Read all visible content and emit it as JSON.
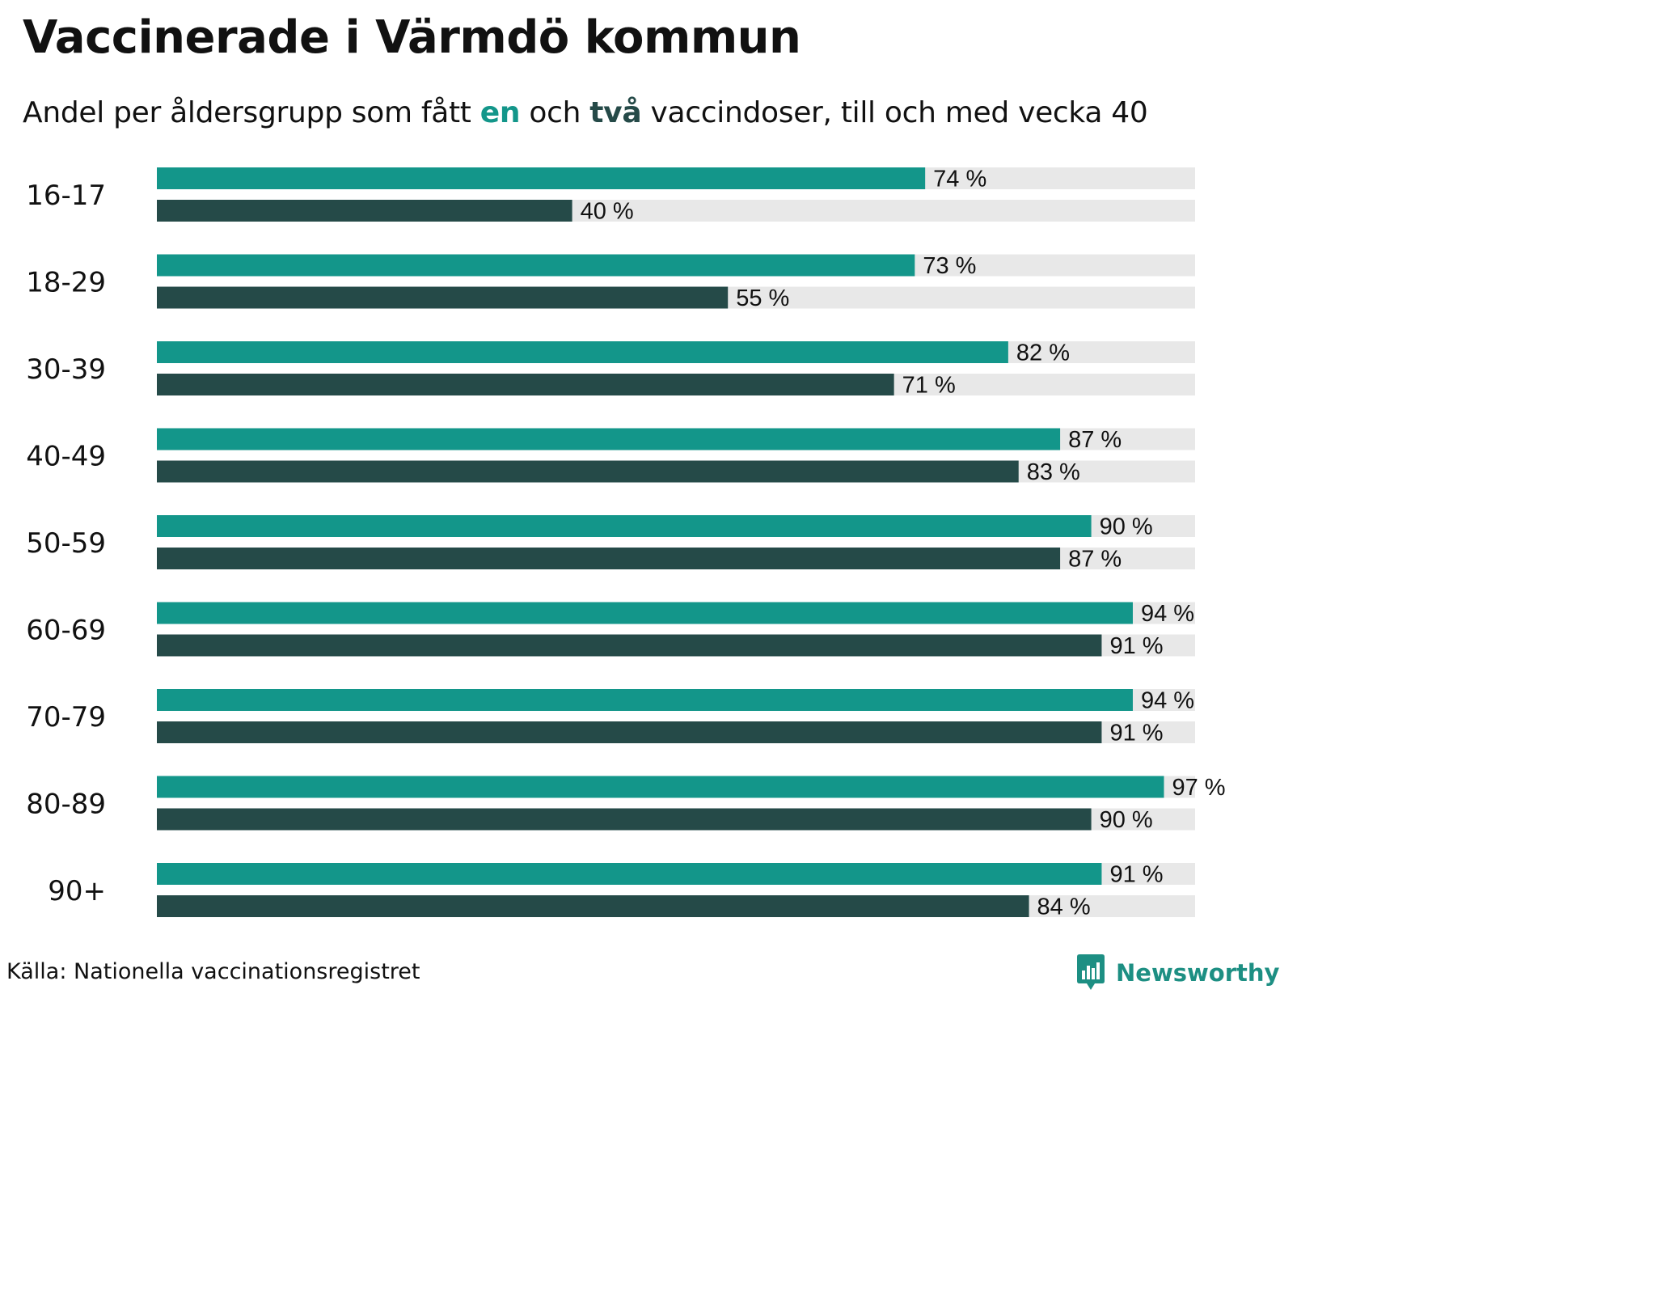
{
  "title": "Vaccinerade i Värmdö kommun",
  "subtitle": {
    "prefix": "Andel per åldersgrupp som fått ",
    "kw1": "en",
    "mid": " och ",
    "kw2": "två",
    "suffix": " vaccindoser, till och med vecka 40"
  },
  "source": "Källa: Nationella vaccinationsregistret",
  "brand": {
    "name": "Newsworthy",
    "icon": "newsworthy-logo-icon"
  },
  "colors": {
    "one_dose": "#13968a",
    "two_doses": "#254a48",
    "track": "#e8e8e8",
    "brand": "#1d8f83"
  },
  "chart_data": {
    "type": "bar",
    "orientation": "horizontal",
    "title": "Vaccinerade i Värmdö kommun",
    "subtitle": "Andel per åldersgrupp som fått en och två vaccindoser, till och med vecka 40",
    "xlabel": "",
    "ylabel": "",
    "xlim": [
      0,
      100
    ],
    "value_suffix": " %",
    "categories": [
      "16-17",
      "18-29",
      "30-39",
      "40-49",
      "50-59",
      "60-69",
      "70-79",
      "80-89",
      "90+"
    ],
    "series": [
      {
        "name": "en",
        "color": "#13968a",
        "values": [
          74,
          73,
          82,
          87,
          90,
          94,
          94,
          97,
          91
        ]
      },
      {
        "name": "två",
        "color": "#254a48",
        "values": [
          40,
          55,
          71,
          83,
          87,
          91,
          91,
          90,
          84
        ]
      }
    ]
  }
}
